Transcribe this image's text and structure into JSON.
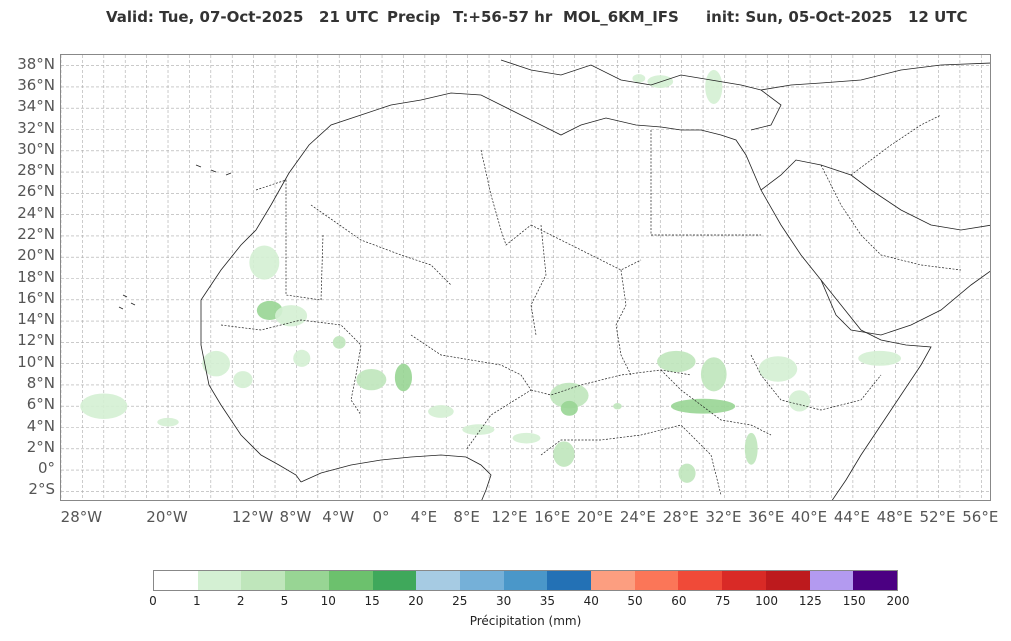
{
  "title": {
    "valid": "Valid: Tue, 07-Oct-2025   21 UTC",
    "field": "Precip",
    "lead": "T:+56-57 hr",
    "model": "MOL_6KM_IFS",
    "init": "init: Sun, 05-Oct-2025   12 UTC"
  },
  "map": {
    "lon_range": [
      -30,
      57
    ],
    "lat_range": [
      -3,
      39
    ],
    "lat_labels": [
      "38°N",
      "36°N",
      "34°N",
      "32°N",
      "30°N",
      "28°N",
      "26°N",
      "24°N",
      "22°N",
      "20°N",
      "18°N",
      "16°N",
      "14°N",
      "12°N",
      "10°N",
      "8°N",
      "6°N",
      "4°N",
      "2°N",
      "0°",
      "2°S"
    ],
    "lat_values": [
      38,
      36,
      34,
      32,
      30,
      28,
      26,
      24,
      22,
      20,
      18,
      16,
      14,
      12,
      10,
      8,
      6,
      4,
      2,
      0,
      -2
    ],
    "lon_labels": [
      "28°W",
      "20°W",
      "12°W",
      "8°W",
      "4°W",
      "0°",
      "4°E",
      "8°E",
      "12°E",
      "16°E",
      "20°E",
      "24°E",
      "28°E",
      "32°E",
      "36°E",
      "40°E",
      "44°E",
      "48°E",
      "52°E",
      "56°E"
    ],
    "lon_values": [
      -28,
      -20,
      -12,
      -8,
      -4,
      0,
      4,
      8,
      12,
      16,
      20,
      24,
      28,
      32,
      36,
      40,
      44,
      48,
      52,
      56
    ],
    "grid": true,
    "coast_color": "#222222",
    "grid_color": "#aaaaaa"
  },
  "precip_areas": [
    {
      "lon": -11,
      "lat": 19.5,
      "level": 1,
      "rx": 1.4,
      "ry": 1.6
    },
    {
      "lon": -10.5,
      "lat": 15,
      "level": 3,
      "rx": 1.2,
      "ry": 0.9
    },
    {
      "lon": -8.5,
      "lat": 14.5,
      "level": 1,
      "rx": 1.5,
      "ry": 1.0
    },
    {
      "lon": -4,
      "lat": 12,
      "level": 2,
      "rx": 0.6,
      "ry": 0.6
    },
    {
      "lon": -7.5,
      "lat": 10.5,
      "level": 1,
      "rx": 0.8,
      "ry": 0.8
    },
    {
      "lon": -15.5,
      "lat": 10,
      "level": 1,
      "rx": 1.3,
      "ry": 1.2
    },
    {
      "lon": -13,
      "lat": 8.5,
      "level": 1,
      "rx": 0.9,
      "ry": 0.8
    },
    {
      "lon": -26,
      "lat": 6,
      "level": 1,
      "rx": 2.2,
      "ry": 1.2
    },
    {
      "lon": -20,
      "lat": 4.5,
      "level": 1,
      "rx": 1.0,
      "ry": 0.4
    },
    {
      "lon": -1,
      "lat": 8.5,
      "level": 2,
      "rx": 1.4,
      "ry": 1.0
    },
    {
      "lon": 2,
      "lat": 8.7,
      "level": 3,
      "rx": 0.8,
      "ry": 1.3
    },
    {
      "lon": 5.5,
      "lat": 5.5,
      "level": 1,
      "rx": 1.2,
      "ry": 0.6
    },
    {
      "lon": 9,
      "lat": 3.8,
      "level": 1,
      "rx": 1.5,
      "ry": 0.5
    },
    {
      "lon": 13.5,
      "lat": 3,
      "level": 1,
      "rx": 1.3,
      "ry": 0.5
    },
    {
      "lon": 17.5,
      "lat": 7,
      "level": 2,
      "rx": 1.8,
      "ry": 1.2
    },
    {
      "lon": 17.5,
      "lat": 5.8,
      "level": 3,
      "rx": 0.8,
      "ry": 0.7
    },
    {
      "lon": 17,
      "lat": 1.5,
      "level": 2,
      "rx": 1.0,
      "ry": 1.2
    },
    {
      "lon": 22,
      "lat": 6,
      "level": 2,
      "rx": 0.4,
      "ry": 0.3
    },
    {
      "lon": 27.5,
      "lat": 10.2,
      "level": 2,
      "rx": 1.8,
      "ry": 1.0
    },
    {
      "lon": 31,
      "lat": 9,
      "level": 2,
      "rx": 1.2,
      "ry": 1.6
    },
    {
      "lon": 30,
      "lat": 6,
      "level": 3,
      "rx": 3.0,
      "ry": 0.7
    },
    {
      "lon": 28.5,
      "lat": -0.3,
      "level": 2,
      "rx": 0.8,
      "ry": 0.9
    },
    {
      "lon": 34.5,
      "lat": 2,
      "level": 2,
      "rx": 0.6,
      "ry": 1.5
    },
    {
      "lon": 37,
      "lat": 9.5,
      "level": 1,
      "rx": 1.8,
      "ry": 1.2
    },
    {
      "lon": 39,
      "lat": 6.5,
      "level": 1,
      "rx": 1.0,
      "ry": 1.0
    },
    {
      "lon": 46.5,
      "lat": 10.5,
      "level": 1,
      "rx": 2.0,
      "ry": 0.7
    },
    {
      "lon": 26,
      "lat": 36.5,
      "level": 1,
      "rx": 1.2,
      "ry": 0.6
    },
    {
      "lon": 31,
      "lat": 36,
      "level": 1,
      "rx": 0.8,
      "ry": 1.6
    },
    {
      "lon": 24,
      "lat": 36.8,
      "level": 1,
      "rx": 0.6,
      "ry": 0.4
    }
  ],
  "colorbar": {
    "label": "Précipitation (mm)",
    "ticks": [
      "0",
      "1",
      "2",
      "5",
      "10",
      "15",
      "20",
      "25",
      "30",
      "35",
      "40",
      "50",
      "60",
      "75",
      "100",
      "125",
      "150",
      "200"
    ],
    "colors": [
      "#ffffff",
      "#d4f0d3",
      "#bfe6bb",
      "#98d594",
      "#6cc16d",
      "#3fa85b",
      "#a6cbe3",
      "#75b0d8",
      "#4a97c9",
      "#2371b5",
      "#fc9e80",
      "#fb7658",
      "#f04a38",
      "#d92a26",
      "#bd1a1d",
      "#b39af0",
      "#4b0082"
    ]
  },
  "level_colors": [
    "#ffffff",
    "#d4f0d3",
    "#bfe6bb",
    "#98d594",
    "#6cc16d",
    "#3fa85b"
  ]
}
